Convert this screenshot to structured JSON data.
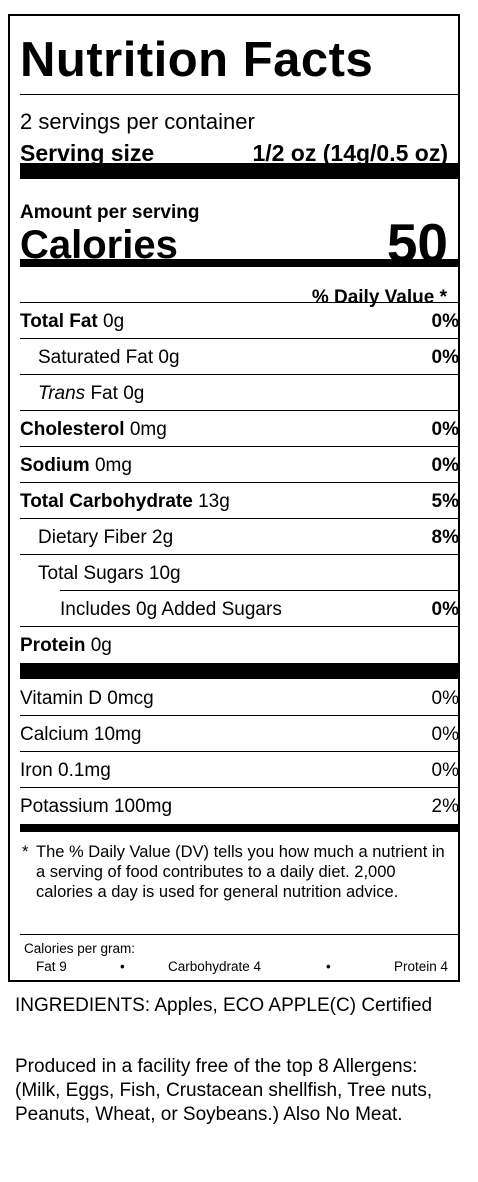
{
  "label": {
    "title": "Nutrition Facts",
    "servings_per_container": "2 servings per container",
    "serving_size_label": "Serving size",
    "serving_size_value": "1/2 oz (14g/0.5 oz)",
    "amount_per_serving": "Amount per serving",
    "calories_label": "Calories",
    "calories_value": "50",
    "dv_header": "% Daily Value *",
    "nutrients": [
      {
        "name": "Total Fat",
        "amount": "0g",
        "dv": "0%"
      },
      {
        "name": "Saturated Fat",
        "amount": "0g",
        "dv": "0%"
      },
      {
        "name": "Trans",
        "suffix": "Fat",
        "amount": "0g",
        "dv": ""
      },
      {
        "name": "Cholesterol",
        "amount": "0mg",
        "dv": "0%"
      },
      {
        "name": "Sodium",
        "amount": "0mg",
        "dv": "0%"
      },
      {
        "name": "Total Carbohydrate",
        "amount": "13g",
        "dv": "5%"
      },
      {
        "name": "Dietary Fiber",
        "amount": "2g",
        "dv": "8%"
      },
      {
        "name": "Total Sugars",
        "amount": "10g",
        "dv": ""
      },
      {
        "name": "Includes 0g Added Sugars",
        "amount": "",
        "dv": "0%"
      },
      {
        "name": "Protein",
        "amount": "0g",
        "dv": ""
      }
    ],
    "vitamins": [
      {
        "name": "Vitamin D 0mcg",
        "dv": "0%"
      },
      {
        "name": "Calcium 10mg",
        "dv": "0%"
      },
      {
        "name": "Iron 0.1mg",
        "dv": "0%"
      },
      {
        "name": "Potassium 100mg",
        "dv": "2%"
      }
    ],
    "footnote_star": "*",
    "footnote": "The % Daily Value (DV) tells you how much a nutrient in a serving of food contributes to a daily diet. 2,000 calories a day is used for general nutrition advice.",
    "calories_per_gram_label": "Calories per gram:",
    "calories_per_gram": {
      "fat": "Fat 9",
      "bullet": "•",
      "carbohydrate": "Carbohydrate 4",
      "protein": "Protein 4"
    }
  },
  "ingredients": "INGREDIENTS: Apples, ECO APPLE(C) Certified",
  "allergens": "Produced in a facility free of the top 8 Allergens:\n(Milk, Eggs, Fish, Crustacean shellfish, Tree nuts, Peanuts, Wheat, or Soybeans.) Also No Meat."
}
